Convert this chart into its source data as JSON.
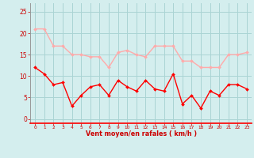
{
  "hours": [
    0,
    1,
    2,
    3,
    4,
    5,
    6,
    7,
    8,
    9,
    10,
    11,
    12,
    13,
    14,
    15,
    16,
    17,
    18,
    19,
    20,
    21,
    22,
    23
  ],
  "wind_mean": [
    12,
    10.5,
    8,
    8.5,
    3,
    5.5,
    7.5,
    8,
    5.5,
    9,
    7.5,
    6.5,
    9,
    7,
    6.5,
    10.5,
    3.5,
    5.5,
    2.5,
    6.5,
    5.5,
    8,
    8,
    7
  ],
  "wind_gust": [
    21,
    21,
    17,
    17,
    15,
    15,
    14.5,
    14.5,
    12,
    15.5,
    16,
    15,
    14.5,
    17,
    17,
    17,
    13.5,
    13.5,
    12,
    12,
    12,
    15,
    15,
    15.5
  ],
  "mean_color": "#ff0000",
  "gust_color": "#ffaaaa",
  "bg_color": "#d4eeee",
  "grid_color": "#aad4d4",
  "xlabel": "Vent moyen/en rafales ( km/h )",
  "xlabel_color": "#cc0000",
  "tick_color": "#cc0000",
  "yticks": [
    0,
    5,
    10,
    15,
    20,
    25
  ],
  "ylim": [
    -1,
    27
  ],
  "xlim": [
    -0.5,
    23.5
  ]
}
